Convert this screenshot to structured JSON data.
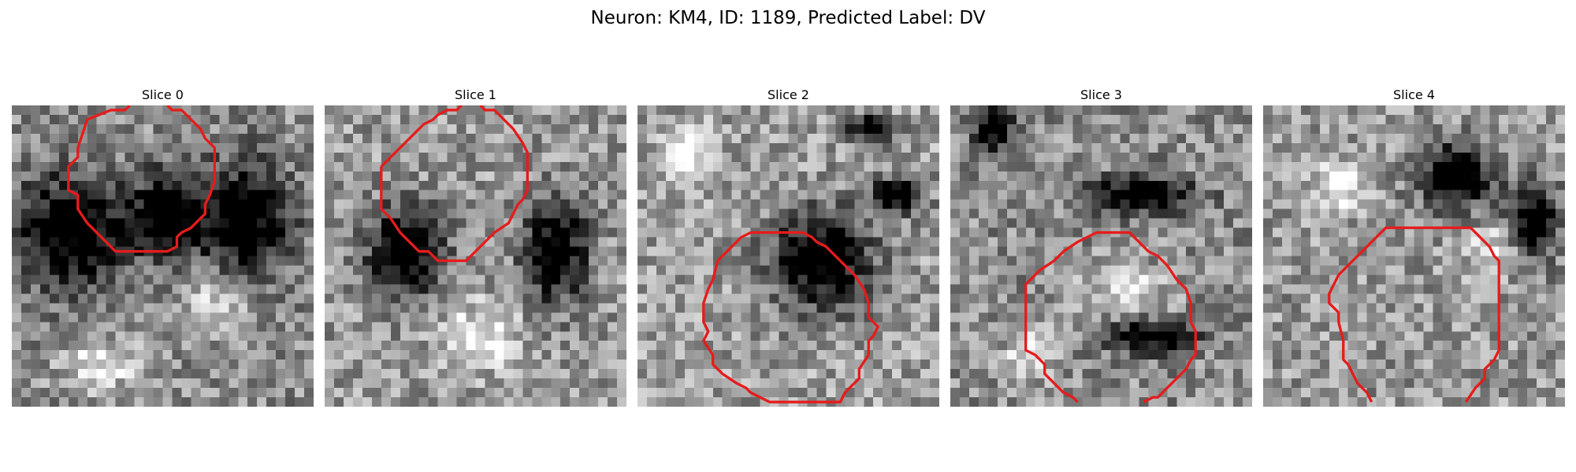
{
  "figure": {
    "title": "Neuron: KM4, ID: 1189, Predicted Label: DV"
  },
  "colors": {
    "contour": "#e51c1c",
    "background": "#ffffff"
  },
  "panels": [
    {
      "title": "Slice 0"
    },
    {
      "title": "Slice 1"
    },
    {
      "title": "Slice 2"
    },
    {
      "title": "Slice 3"
    },
    {
      "title": "Slice 4"
    }
  ]
}
